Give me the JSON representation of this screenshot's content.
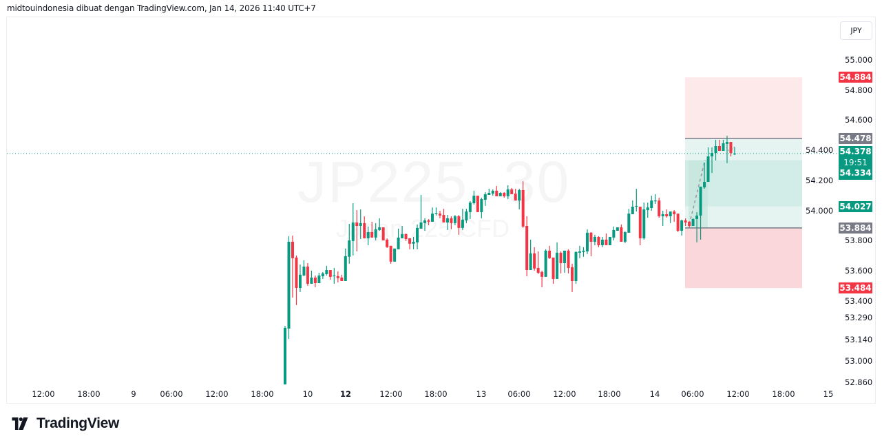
{
  "header": {
    "text": "midtouindonesia dibuat dengan TradingView.com, Jan 14, 2026 11:40 UTC+7"
  },
  "watermark": {
    "symbol": "JP225, 30",
    "description": "Japan 225 CFD"
  },
  "currency_button": "JPY",
  "logo": {
    "text": "TradingView"
  },
  "colors": {
    "up": "#089981",
    "down": "#f23645",
    "neutral": "#787b86",
    "profit_zone": "#e5f4f1",
    "loss_zone": "#fad7da"
  },
  "chart_data": {
    "type": "candlestick",
    "interval": "30 minutes",
    "ylim": [
      52.83,
      55.13
    ],
    "y_ticks": [
      "55.000",
      "54.800",
      "54.600",
      "54.400",
      "54.200",
      "54.000",
      "53.800",
      "53.600",
      "53.400",
      "53.290",
      "53.140",
      "53.000",
      "52.860"
    ],
    "x_ticks": [
      {
        "label": "12:00",
        "bold": false
      },
      {
        "label": "18:00",
        "bold": false
      },
      {
        "label": "9",
        "bold": false
      },
      {
        "label": "06:00",
        "bold": false
      },
      {
        "label": "12:00",
        "bold": false
      },
      {
        "label": "18:00",
        "bold": false
      },
      {
        "label": "10",
        "bold": false
      },
      {
        "label": "12",
        "bold": true
      },
      {
        "label": "12:00",
        "bold": false
      },
      {
        "label": "18:00",
        "bold": false
      },
      {
        "label": "13",
        "bold": false
      },
      {
        "label": "06:00",
        "bold": false
      },
      {
        "label": "12:00",
        "bold": false
      },
      {
        "label": "18:00",
        "bold": false
      },
      {
        "label": "14",
        "bold": false
      },
      {
        "label": "06:00",
        "bold": false
      },
      {
        "label": "12:00",
        "bold": false
      },
      {
        "label": "18:00",
        "bold": false
      },
      {
        "label": "15",
        "bold": false
      }
    ],
    "candles_ohlc": [
      [
        52.844,
        53.233,
        52.844,
        53.22
      ],
      [
        53.215,
        53.829,
        53.146,
        53.792
      ],
      [
        53.792,
        53.833,
        53.421,
        53.683
      ],
      [
        53.687,
        53.701,
        53.371,
        53.485
      ],
      [
        53.485,
        53.641,
        53.458,
        53.573
      ],
      [
        53.568,
        53.669,
        53.563,
        53.627
      ],
      [
        53.627,
        53.65,
        53.499,
        53.513
      ],
      [
        53.513,
        53.6,
        53.513,
        53.554
      ],
      [
        53.554,
        53.568,
        53.49,
        53.517
      ],
      [
        53.517,
        53.586,
        53.517,
        53.568
      ],
      [
        53.563,
        53.591,
        53.545,
        53.582
      ],
      [
        53.577,
        53.632,
        53.568,
        53.604
      ],
      [
        53.604,
        53.604,
        53.54,
        53.559
      ],
      [
        53.563,
        53.618,
        53.513,
        53.568
      ],
      [
        53.563,
        53.595,
        53.522,
        53.55
      ],
      [
        53.554,
        53.573,
        53.531,
        53.531
      ],
      [
        53.531,
        53.747,
        53.531,
        53.696
      ],
      [
        53.692,
        53.911,
        53.646,
        53.801
      ],
      [
        53.797,
        54.048,
        53.701,
        53.92
      ],
      [
        53.92,
        54.002,
        53.728,
        53.897
      ],
      [
        53.897,
        54.007,
        53.81,
        53.916
      ],
      [
        53.916,
        53.961,
        53.815,
        53.815
      ],
      [
        53.815,
        53.893,
        53.769,
        53.856
      ],
      [
        53.856,
        53.925,
        53.82,
        53.82
      ],
      [
        53.82,
        53.916,
        53.801,
        53.875
      ],
      [
        53.87,
        53.948,
        53.865,
        53.888
      ],
      [
        53.888,
        53.888,
        53.801,
        53.801
      ],
      [
        53.806,
        53.815,
        53.751,
        53.756
      ],
      [
        53.765,
        53.765,
        53.646,
        53.66
      ],
      [
        53.66,
        53.747,
        53.66,
        53.747
      ],
      [
        53.742,
        53.879,
        53.742,
        53.82
      ],
      [
        53.815,
        53.897,
        53.815,
        53.843
      ],
      [
        53.843,
        53.847,
        53.797,
        53.81
      ],
      [
        53.815,
        53.815,
        53.742,
        53.779
      ],
      [
        53.779,
        53.824,
        53.742,
        53.792
      ],
      [
        53.788,
        53.907,
        53.742,
        53.884
      ],
      [
        53.879,
        54.103,
        53.879,
        53.92
      ],
      [
        53.916,
        53.948,
        53.865,
        53.934
      ],
      [
        53.934,
        53.943,
        53.902,
        53.925
      ],
      [
        53.925,
        54.02,
        53.925,
        53.979
      ],
      [
        53.979,
        54.02,
        53.966,
        53.984
      ],
      [
        53.979,
        53.998,
        53.948,
        53.966
      ],
      [
        53.97,
        54.011,
        53.92,
        53.92
      ],
      [
        53.92,
        53.97,
        53.87,
        53.948
      ],
      [
        53.948,
        53.961,
        53.875,
        53.916
      ],
      [
        53.916,
        53.97,
        53.902,
        53.961
      ],
      [
        53.961,
        53.97,
        53.838,
        53.884
      ],
      [
        53.884,
        54.011,
        53.87,
        53.939
      ],
      [
        53.934,
        54.011,
        53.916,
        53.993
      ],
      [
        53.989,
        54.062,
        53.943,
        54.052
      ],
      [
        54.048,
        54.131,
        54.039,
        54.098
      ],
      [
        54.098,
        54.098,
        53.989,
        53.989
      ],
      [
        53.989,
        54.085,
        53.948,
        54.075
      ],
      [
        54.071,
        54.121,
        54.03,
        54.108
      ],
      [
        54.103,
        54.144,
        54.103,
        54.117
      ],
      [
        54.112,
        54.14,
        54.098,
        54.131
      ],
      [
        54.131,
        54.162,
        54.094,
        54.094
      ],
      [
        54.094,
        54.121,
        54.094,
        54.117
      ],
      [
        54.117,
        54.121,
        54.085,
        54.094
      ],
      [
        54.094,
        54.167,
        54.075,
        54.14
      ],
      [
        54.14,
        54.149,
        54.108,
        54.108
      ],
      [
        54.112,
        54.144,
        54.066,
        54.066
      ],
      [
        54.066,
        54.144,
        54.007,
        54.135
      ],
      [
        54.135,
        54.194,
        53.884,
        53.893
      ],
      [
        53.897,
        53.961,
        53.563,
        53.604
      ],
      [
        53.604,
        53.806,
        53.604,
        53.715
      ],
      [
        53.715,
        53.756,
        53.6,
        53.614
      ],
      [
        53.618,
        53.728,
        53.577,
        53.586
      ],
      [
        53.591,
        53.6,
        53.49,
        53.559
      ],
      [
        53.559,
        53.742,
        53.559,
        53.733
      ],
      [
        53.733,
        53.765,
        53.678,
        53.683
      ],
      [
        53.687,
        53.687,
        53.513,
        53.545
      ],
      [
        53.545,
        53.788,
        53.545,
        53.719
      ],
      [
        53.719,
        53.728,
        53.582,
        53.65
      ],
      [
        53.65,
        53.733,
        53.586,
        53.733
      ],
      [
        53.733,
        53.742,
        53.582,
        53.618
      ],
      [
        53.623,
        53.646,
        53.458,
        53.531
      ],
      [
        53.531,
        53.728,
        53.513,
        53.724
      ],
      [
        53.719,
        53.765,
        53.683,
        53.728
      ],
      [
        53.724,
        53.756,
        53.692,
        53.733
      ],
      [
        53.728,
        53.875,
        53.71,
        53.852
      ],
      [
        53.852,
        53.856,
        53.696,
        53.792
      ],
      [
        53.792,
        53.838,
        53.769,
        53.824
      ],
      [
        53.824,
        53.829,
        53.756,
        53.769
      ],
      [
        53.769,
        53.824,
        53.756,
        53.806
      ],
      [
        53.806,
        53.847,
        53.769,
        53.769
      ],
      [
        53.769,
        53.824,
        53.769,
        53.824
      ],
      [
        53.82,
        53.893,
        53.801,
        53.87
      ],
      [
        53.865,
        53.888,
        53.865,
        53.888
      ],
      [
        53.888,
        53.907,
        53.792,
        53.792
      ],
      [
        53.792,
        53.861,
        53.783,
        53.856
      ],
      [
        53.852,
        54.011,
        53.852,
        53.979
      ],
      [
        53.975,
        54.066,
        53.975,
        54.025
      ],
      [
        54.025,
        54.144,
        53.993,
        54.03
      ],
      [
        54.025,
        54.025,
        53.769,
        53.815
      ],
      [
        53.815,
        54.052,
        53.806,
        54.007
      ],
      [
        54.002,
        54.052,
        53.952,
        54.02
      ],
      [
        54.016,
        54.098,
        53.998,
        54.066
      ],
      [
        54.062,
        54.108,
        54.043,
        54.066
      ],
      [
        54.066,
        54.085,
        53.952,
        53.961
      ],
      [
        53.961,
        53.998,
        53.897,
        53.975
      ],
      [
        53.975,
        54.007,
        53.952,
        53.961
      ],
      [
        53.961,
        53.993,
        53.916,
        53.993
      ],
      [
        53.993,
        54.002,
        53.925,
        53.975
      ],
      [
        53.979,
        53.979,
        53.856,
        53.865
      ],
      [
        53.865,
        53.939,
        53.833,
        53.934
      ],
      [
        53.934,
        53.948,
        53.897,
        53.92
      ],
      [
        53.925,
        53.929,
        53.888,
        53.897
      ],
      [
        53.897,
        53.948,
        53.897,
        53.943
      ],
      [
        53.943,
        53.989,
        53.788,
        53.966
      ],
      [
        53.966,
        54.158,
        53.806,
        54.158
      ],
      [
        54.153,
        54.318,
        54.144,
        54.19
      ],
      [
        54.19,
        54.419,
        54.19,
        54.359
      ],
      [
        54.359,
        54.419,
        54.249,
        54.382
      ],
      [
        54.382,
        54.469,
        54.332,
        54.428
      ],
      [
        54.428,
        54.469,
        54.396,
        54.396
      ],
      [
        54.396,
        54.469,
        54.396,
        54.446
      ],
      [
        54.442,
        54.496,
        54.314,
        54.455
      ],
      [
        54.455,
        54.455,
        54.359,
        54.382
      ],
      [
        54.373,
        54.419,
        54.368,
        54.378
      ]
    ],
    "last_price": {
      "value": "54.378",
      "countdown": "19:51"
    },
    "position_tool": {
      "stop_upper": {
        "value": 54.884,
        "label": "54.884"
      },
      "entry_upper": {
        "value": 54.478,
        "label": "54.478"
      },
      "target_upper": {
        "value": 54.334,
        "label": "54.334"
      },
      "target_lower": {
        "value": 54.027,
        "label": "54.027"
      },
      "entry_lower": {
        "value": 53.884,
        "label": "53.884"
      },
      "stop_lower": {
        "value": 53.484,
        "label": "53.484"
      }
    }
  }
}
